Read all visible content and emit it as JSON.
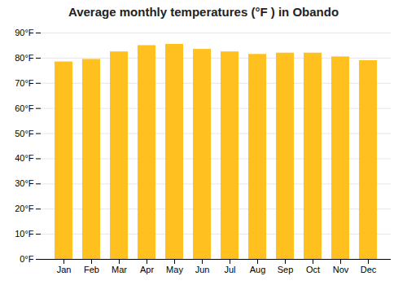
{
  "chart_data": {
    "type": "bar",
    "title": "Average monthly temperatures (°F ) in Obando",
    "categories": [
      "Jan",
      "Feb",
      "Mar",
      "Apr",
      "May",
      "Jun",
      "Jul",
      "Aug",
      "Sep",
      "Oct",
      "Nov",
      "Dec"
    ],
    "values": [
      78.5,
      79.5,
      82.5,
      85.0,
      85.5,
      83.5,
      82.5,
      81.5,
      82.0,
      82.0,
      80.5,
      79.0
    ],
    "color": "#FFC020",
    "ylim": [
      0,
      90
    ],
    "yticks": [
      {
        "value": 0,
        "label": "0°F"
      },
      {
        "value": 10,
        "label": "10°F"
      },
      {
        "value": 20,
        "label": "20°F"
      },
      {
        "value": 30,
        "label": "30°F"
      },
      {
        "value": 40,
        "label": "40°F"
      },
      {
        "value": 50,
        "label": "50°F"
      },
      {
        "value": 60,
        "label": "60°F"
      },
      {
        "value": 70,
        "label": "70°F"
      },
      {
        "value": 80,
        "label": "80°F"
      },
      {
        "value": 90,
        "label": "90°F"
      }
    ],
    "grid": true
  }
}
